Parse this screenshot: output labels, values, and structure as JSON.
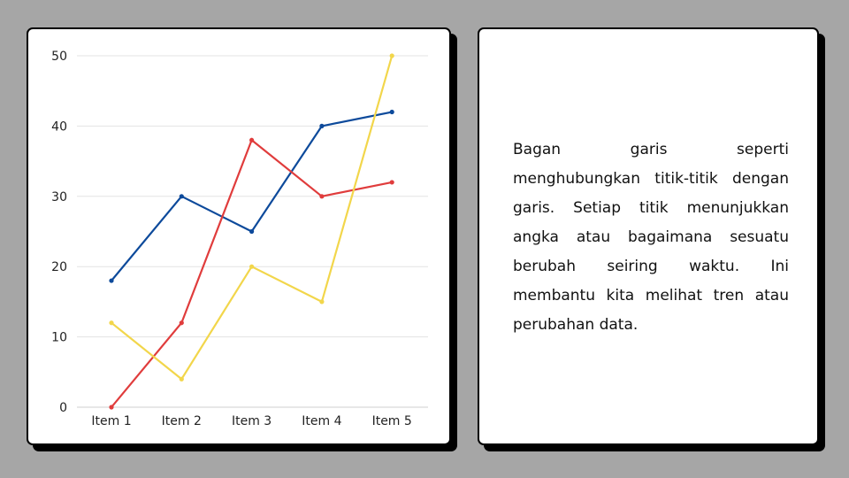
{
  "chart_data": {
    "type": "line",
    "categories": [
      "Item 1",
      "Item 2",
      "Item 3",
      "Item 4",
      "Item 5"
    ],
    "series": [
      {
        "color": "#0d4a9b",
        "values": [
          18,
          30,
          25,
          40,
          42
        ]
      },
      {
        "color": "#e03c3c",
        "values": [
          0,
          12,
          38,
          30,
          32
        ]
      },
      {
        "color": "#f2d64b",
        "values": [
          12,
          4,
          20,
          15,
          50
        ]
      }
    ],
    "yticks": [
      "0",
      "10",
      "20",
      "30",
      "40",
      "50"
    ],
    "ylim": [
      0,
      50
    ],
    "grid": true,
    "gridColor": "#e3e3e3"
  },
  "description": {
    "text": "Bagan garis seperti menghubungkan titik-titik dengan garis. Setiap titik menunjukkan angka atau bagaimana sesuatu berubah seiring waktu. Ini membantu kita melihat tren atau perubahan data."
  }
}
